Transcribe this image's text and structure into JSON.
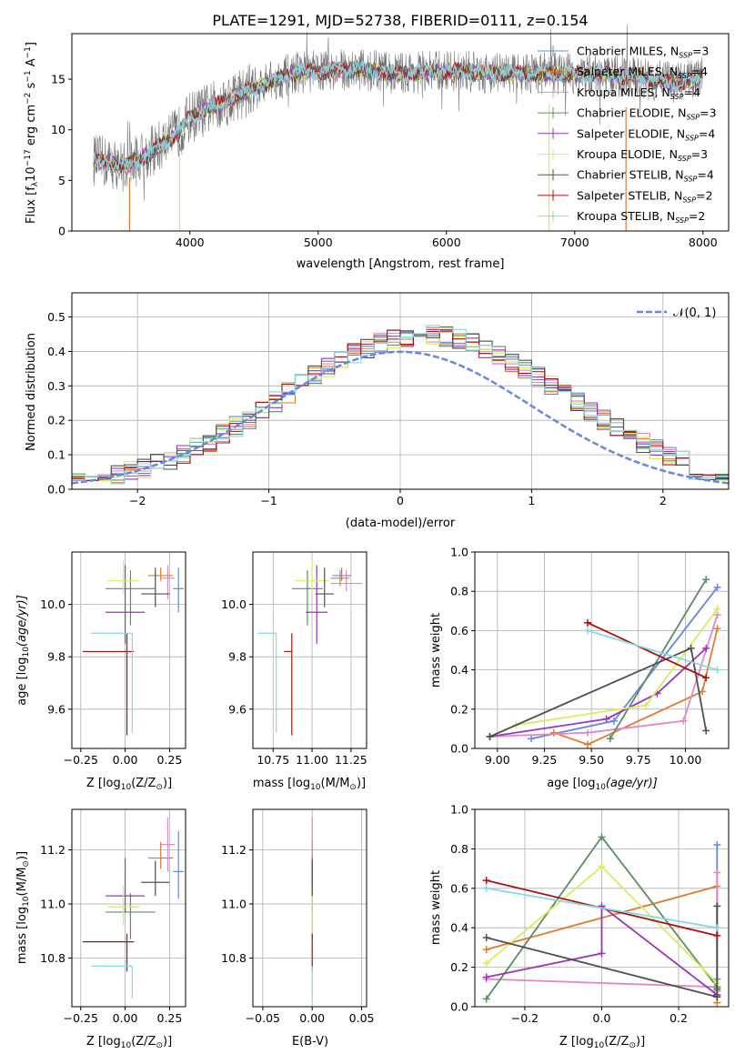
{
  "colors": {
    "series": [
      "#6688dd",
      "#e07a30",
      "#e088c8",
      "#5c8c64",
      "#9a35b8",
      "#d4ee60",
      "#505050",
      "#aa1111",
      "#88d8e0"
    ],
    "spectrum": "#707070",
    "normal_curve": "#6688dd",
    "grid": "#b0b0b0"
  },
  "chart_data": [
    {
      "type": "line",
      "title": "PLATE=1291, MJD=52738, FIBERID=0111, z=0.154",
      "xlabel": "wavelength [Angstrom, rest frame]",
      "ylabel": "Flux [f",
      "ylabel_tail": "10",
      "ylabel_exp": "−17",
      "ylabel_units": " erg cm",
      "ylabel_units_exp1": "−2",
      "ylabel_units_mid": " s",
      "ylabel_units_exp2": "−1",
      "ylabel_units_end": " A",
      "ylabel_units_exp3": "−1",
      "ylabel_close": "]",
      "xlim": [
        3080,
        8200
      ],
      "ylim": [
        0,
        19.5
      ],
      "xticks": [
        "4000",
        "5000",
        "6000",
        "7000",
        "8000"
      ],
      "yticks": [
        "0",
        "5",
        "10",
        "15"
      ],
      "grid": false,
      "legend_position": "top-right",
      "legend": [
        {
          "name": "Chabrier MILES, N",
          "sub": "SSP",
          "tail": "=3"
        },
        {
          "name": "Salpeter MILES, N",
          "sub": "SSP",
          "tail": "=4"
        },
        {
          "name": "Kroupa MILES, N",
          "sub": "SSP",
          "tail": "=4"
        },
        {
          "name": "Chabrier ELODIE, N",
          "sub": "SSP",
          "tail": "=3"
        },
        {
          "name": "Salpeter ELODIE, N",
          "sub": "SSP",
          "tail": "=4"
        },
        {
          "name": "Kroupa ELODIE, N",
          "sub": "SSP",
          "tail": "=3"
        },
        {
          "name": "Chabrier STELIB, N",
          "sub": "SSP",
          "tail": "=4"
        },
        {
          "name": "Salpeter STELIB, N",
          "sub": "SSP",
          "tail": "=2"
        },
        {
          "name": "Kroupa STELIB, N",
          "sub": "SSP",
          "tail": "=2"
        }
      ],
      "continuum": {
        "x": [
          3250,
          3500,
          3700,
          3900,
          4000,
          4200,
          4400,
          4600,
          4800,
          5000,
          5300,
          5600,
          6000,
          6400,
          6800,
          7200,
          7500,
          7800,
          8000
        ],
        "y": [
          7.0,
          6.4,
          7.8,
          9.6,
          11.2,
          12.4,
          13.6,
          14.6,
          15.6,
          15.8,
          16.0,
          15.6,
          15.8,
          15.6,
          15.6,
          15.4,
          15.2,
          14.6,
          15.2
        ]
      }
    },
    {
      "type": "histogram",
      "xlabel": "(data-model)/error",
      "ylabel": "Normed distribution",
      "xlim": [
        -2.5,
        2.5
      ],
      "ylim": [
        0,
        0.57
      ],
      "xticks": [
        "−2",
        "−1",
        "0",
        "1",
        "2"
      ],
      "yticks": [
        "0.0",
        "0.1",
        "0.2",
        "0.3",
        "0.4",
        "0.5"
      ],
      "grid": true,
      "legend_position": "top-right",
      "normal_label": "𝒩(0, 1)",
      "bin_width": 0.1
    },
    {
      "type": "scatter",
      "xlabel": "Z [log",
      "xlabel_sub": "10",
      "xlabel_tail": "(Z/Z",
      "xlabel_sub2": "⊙",
      "xlabel_end": ")]",
      "ylabel": "age  [log",
      "ylabel_sub": "10",
      "ylabel_tail": "(age/yr)]",
      "xlim": [
        -0.3,
        0.34
      ],
      "ylim": [
        9.45,
        10.2
      ],
      "xticks": [
        "−0.25",
        "0.00",
        "0.25"
      ],
      "yticks": [
        "9.6",
        "9.8",
        "10.0"
      ],
      "points": [
        {
          "x": 0.3,
          "y": 10.06,
          "xerr": 0.03,
          "yerr": [
            0.09,
            0.08
          ]
        },
        {
          "x": 0.2,
          "y": 10.11,
          "xerr": 0.07,
          "yerr": [
            0.02,
            0.03
          ]
        },
        {
          "x": 0.24,
          "y": 10.1,
          "xerr": 0.04,
          "yerr": [
            0.08,
            0.05
          ]
        },
        {
          "x": 0.03,
          "y": 10.06,
          "xerr": 0.14,
          "yerr": [
            0.14,
            0.07
          ]
        },
        {
          "x": 0.0,
          "y": 9.97,
          "xerr": 0.11,
          "yerr": [
            0.12,
            0.18
          ]
        },
        {
          "x": -0.01,
          "y": 10.09,
          "xerr": 0.09,
          "yerr": [
            0.05,
            0.08
          ]
        },
        {
          "x": 0.17,
          "y": 10.04,
          "xerr": 0.08,
          "yerr": [
            0.05,
            0.1
          ]
        },
        {
          "x": 0.01,
          "y": 9.82,
          "xerr": [
            0.25,
            0.04
          ],
          "yerr": [
            0.32,
            0.07
          ]
        },
        {
          "x": 0.04,
          "y": 9.89,
          "xerr": [
            0.23,
            0.0
          ],
          "yerr": [
            0.38,
            0.0
          ]
        }
      ]
    },
    {
      "type": "scatter",
      "xlabel": "mass [log",
      "xlabel_sub": "10",
      "xlabel_tail": "(M/M",
      "xlabel_sub2": "⊙",
      "xlabel_end": ")]",
      "xlim": [
        10.62,
        11.35
      ],
      "ylim": [
        9.45,
        10.2
      ],
      "xticks": [
        "10.75",
        "11.00",
        "11.25"
      ],
      "yticks": [
        "9.6",
        "9.8",
        "10.0"
      ],
      "points": [
        {
          "x": 11.19,
          "y": 10.11,
          "xerr": 0.06,
          "yerr": [
            0.02,
            0.03
          ]
        },
        {
          "x": 11.18,
          "y": 10.1,
          "xerr": 0.06,
          "yerr": [
            0.03,
            0.03
          ]
        },
        {
          "x": 11.22,
          "y": 10.08,
          "xerr": 0.1,
          "yerr": [
            0.03,
            0.05
          ]
        },
        {
          "x": 10.97,
          "y": 10.06,
          "xerr": 0.1,
          "yerr": [
            0.14,
            0.07
          ]
        },
        {
          "x": 11.03,
          "y": 9.97,
          "xerr": 0.07,
          "yerr": [
            0.12,
            0.18
          ]
        },
        {
          "x": 11.0,
          "y": 10.09,
          "xerr": 0.11,
          "yerr": [
            0.05,
            0.08
          ]
        },
        {
          "x": 11.08,
          "y": 10.04,
          "xerr": 0.06,
          "yerr": [
            0.05,
            0.1
          ]
        },
        {
          "x": 10.87,
          "y": 9.82,
          "xerr": [
            0.05,
            0.0
          ],
          "yerr": [
            0.32,
            0.07
          ]
        },
        {
          "x": 10.77,
          "y": 9.89,
          "xerr": [
            0.12,
            0.0
          ],
          "yerr": [
            0.38,
            0.0
          ]
        }
      ]
    },
    {
      "type": "line",
      "xlabel": "age  [log",
      "xlabel_sub": "10",
      "xlabel_tail": "(age/yr)]",
      "ylabel": "mass weight",
      "xlim": [
        8.88,
        10.23
      ],
      "ylim": [
        0,
        1.0
      ],
      "xticks": [
        "9.00",
        "9.25",
        "9.50",
        "9.75",
        "10.00"
      ],
      "yticks": [
        "0.0",
        "0.2",
        "0.4",
        "0.6",
        "0.8",
        "1.0"
      ],
      "grid": true,
      "series": [
        {
          "x": [
            9.18,
            9.62,
            10.17
          ],
          "y": [
            0.05,
            0.14,
            0.82
          ]
        },
        {
          "x": [
            9.3,
            9.48,
            10.09,
            10.17
          ],
          "y": [
            0.08,
            0.02,
            0.29,
            0.61
          ]
        },
        {
          "x": [
            8.96,
            9.48,
            9.99,
            10.17
          ],
          "y": [
            0.06,
            0.08,
            0.14,
            0.68
          ]
        },
        {
          "x": [
            9.6,
            10.11
          ],
          "y": [
            0.05,
            0.86
          ]
        },
        {
          "x": [
            8.96,
            9.58,
            9.85,
            10.11
          ],
          "y": [
            0.06,
            0.15,
            0.28,
            0.51
          ]
        },
        {
          "x": [
            9.1,
            9.79,
            10.17
          ],
          "y": [
            0.12,
            0.22,
            0.71
          ]
        },
        {
          "x": [
            8.96,
            10.03,
            10.11
          ],
          "y": [
            0.06,
            0.51,
            0.09
          ]
        },
        {
          "x": [
            9.48,
            10.11
          ],
          "y": [
            0.64,
            0.36
          ]
        },
        {
          "x": [
            9.48,
            10.17
          ],
          "y": [
            0.6,
            0.4
          ]
        }
      ]
    },
    {
      "type": "scatter",
      "xlabel": "Z [log",
      "xlabel_sub": "10",
      "xlabel_tail": "(Z/Z",
      "xlabel_sub2": "⊙",
      "xlabel_end": ")]",
      "ylabel": "mass [log",
      "ylabel_sub": "10",
      "ylabel_tail": "(M/M",
      "ylabel_sub2": "⊙",
      "ylabel_end": ")]",
      "xlim": [
        -0.3,
        0.34
      ],
      "ylim": [
        10.62,
        11.35
      ],
      "xticks": [
        "−0.25",
        "0.00",
        "0.25"
      ],
      "yticks": [
        "10.8",
        "11.0",
        "11.2"
      ],
      "points": [
        {
          "x": 0.3,
          "y": 11.12,
          "xerr": 0.03,
          "yerr": [
            0.1,
            0.15
          ]
        },
        {
          "x": 0.2,
          "y": 11.17,
          "xerr": 0.07,
          "yerr": [
            0.04,
            0.06
          ]
        },
        {
          "x": 0.24,
          "y": 11.22,
          "xerr": 0.04,
          "yerr": [
            0.1,
            0.1
          ]
        },
        {
          "x": 0.03,
          "y": 10.97,
          "xerr": 0.14,
          "yerr": [
            0.1,
            0.07
          ]
        },
        {
          "x": 0.0,
          "y": 11.03,
          "xerr": 0.11,
          "yerr": [
            0.06,
            0.14
          ]
        },
        {
          "x": -0.01,
          "y": 10.99,
          "xerr": 0.09,
          "yerr": [
            0.07,
            0.08
          ]
        },
        {
          "x": 0.17,
          "y": 11.08,
          "xerr": 0.08,
          "yerr": [
            0.05,
            0.08
          ]
        },
        {
          "x": 0.01,
          "y": 10.86,
          "xerr": [
            0.25,
            0.04
          ],
          "yerr": [
            0.11,
            0.03
          ]
        },
        {
          "x": 0.04,
          "y": 10.77,
          "xerr": [
            0.23,
            0.0
          ],
          "yerr": [
            0.12,
            0.0
          ]
        }
      ]
    },
    {
      "type": "scatter",
      "xlabel": "E(B-V)",
      "xlim": [
        -0.06,
        0.055
      ],
      "ylim": [
        10.62,
        11.35
      ],
      "xticks": [
        "−0.05",
        "0.00",
        "0.05"
      ],
      "yticks": [
        "10.8",
        "11.0",
        "11.2"
      ],
      "points": [
        {
          "x": 0,
          "y": 11.12,
          "yerr": [
            0.1,
            0.12
          ]
        },
        {
          "x": 0,
          "y": 11.17,
          "yerr": [
            0.04,
            0.06
          ]
        },
        {
          "x": 0,
          "y": 11.22,
          "yerr": [
            0.1,
            0.1
          ]
        },
        {
          "x": 0,
          "y": 10.97,
          "yerr": [
            0.1,
            0.07
          ]
        },
        {
          "x": 0,
          "y": 11.03,
          "yerr": [
            0.06,
            0.14
          ]
        },
        {
          "x": 0,
          "y": 10.99,
          "yerr": [
            0.1,
            0.08
          ]
        },
        {
          "x": 0,
          "y": 11.08,
          "yerr": [
            0.05,
            0.08
          ]
        },
        {
          "x": 0,
          "y": 10.86,
          "yerr": [
            0.11,
            0.03
          ]
        },
        {
          "x": 0,
          "y": 10.77,
          "yerr": [
            0.12,
            0.0
          ]
        }
      ]
    },
    {
      "type": "line",
      "xlabel": "Z [log",
      "xlabel_sub": "10",
      "xlabel_tail": "(Z/Z",
      "xlabel_sub2": "⊙",
      "xlabel_end": ")]",
      "ylabel": "mass weight",
      "xlim": [
        -0.33,
        0.33
      ],
      "ylim": [
        0,
        1.0
      ],
      "xticks": [
        "−0.2",
        "0.0",
        "0.2"
      ],
      "yticks": [
        "0.0",
        "0.2",
        "0.4",
        "0.6",
        "0.8",
        "1.0"
      ],
      "grid": true,
      "series": [
        {
          "x": [
            0.3,
            0.3,
            0.3
          ],
          "y": [
            0.05,
            0.14,
            0.82
          ]
        },
        {
          "x": [
            -0.3,
            0.3,
            0.3,
            0.3
          ],
          "y": [
            0.29,
            0.61,
            0.08,
            0.02
          ]
        },
        {
          "x": [
            -0.3,
            0.3,
            0.3,
            0.3
          ],
          "y": [
            0.14,
            0.1,
            0.06,
            0.68
          ]
        },
        {
          "x": [
            -0.3,
            0.0,
            0.3
          ],
          "y": [
            0.04,
            0.86,
            0.1
          ]
        },
        {
          "x": [
            -0.3,
            0.0,
            0.0,
            0.3
          ],
          "y": [
            0.15,
            0.27,
            0.51,
            0.06
          ]
        },
        {
          "x": [
            -0.3,
            0.0,
            0.3
          ],
          "y": [
            0.22,
            0.71,
            0.12
          ]
        },
        {
          "x": [
            -0.3,
            0.3,
            0.3,
            0.3
          ],
          "y": [
            0.35,
            0.05,
            0.51,
            0.09
          ]
        },
        {
          "x": [
            -0.3,
            0.3
          ],
          "y": [
            0.64,
            0.36
          ]
        },
        {
          "x": [
            -0.3,
            0.3
          ],
          "y": [
            0.6,
            0.4
          ]
        }
      ]
    }
  ]
}
